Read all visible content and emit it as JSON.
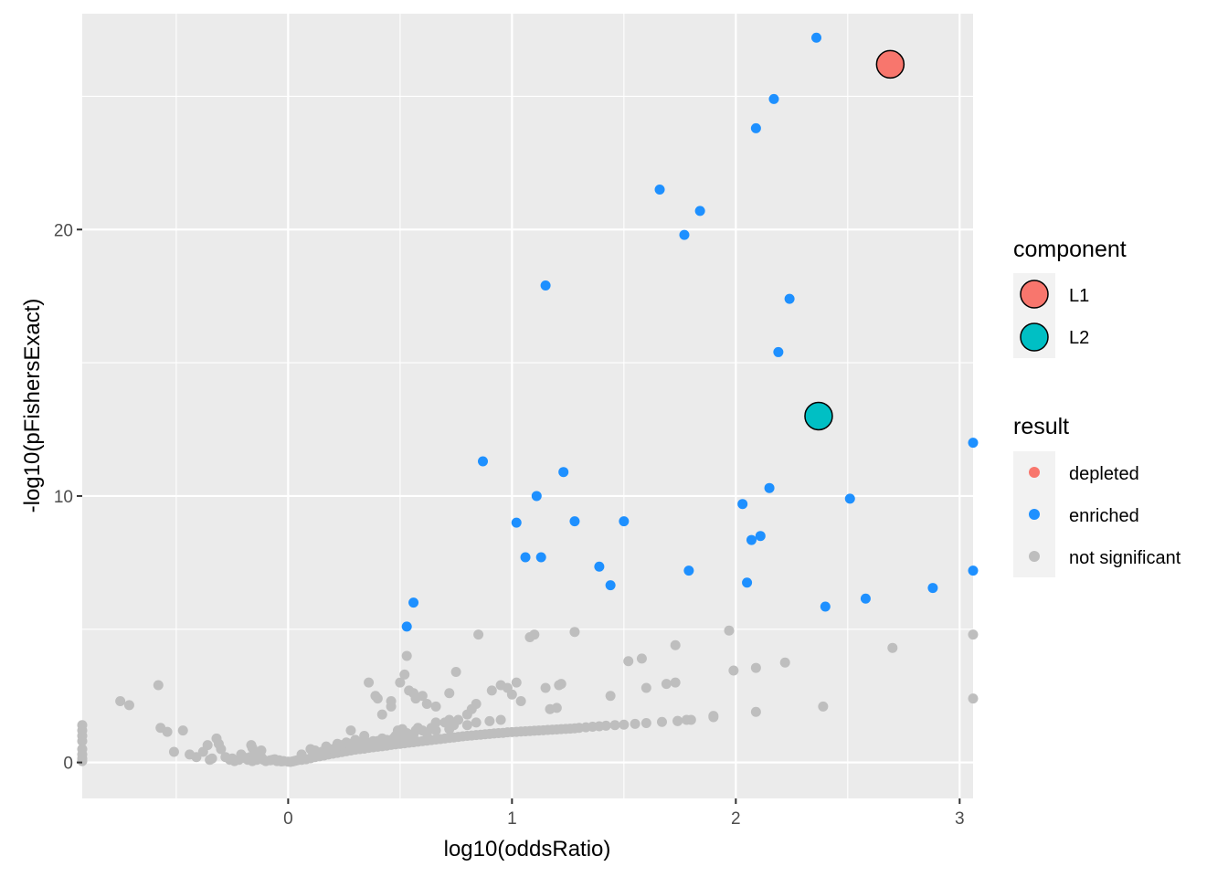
{
  "chart_data": {
    "type": "scatter",
    "xlabel": "log10(oddsRatio)",
    "ylabel": "-log10(pFishersExact)",
    "xlim": [
      -0.92,
      3.06
    ],
    "ylim": [
      -1.35,
      28.1
    ],
    "x_ticks": [
      0,
      1,
      2,
      3
    ],
    "y_ticks": [
      0,
      10,
      20
    ],
    "x_tick_labels": [
      "0",
      "1",
      "2",
      "3"
    ],
    "y_tick_labels": [
      "0",
      "10",
      "20"
    ],
    "grid": true,
    "colors": {
      "panel": "#ebebeb",
      "grid": "#ffffff",
      "depleted": "#f8766d",
      "enriched": "#1e90ff",
      "not_significant": "#bebebe",
      "L1": "#f8766d",
      "L2": "#00bfc4"
    },
    "legends": [
      {
        "title": "component",
        "placement": "right",
        "entries": [
          {
            "label": "L1",
            "color": "#f8766d",
            "style": "large-outlined"
          },
          {
            "label": "L2",
            "color": "#00bfc4",
            "style": "large-outlined"
          }
        ]
      },
      {
        "title": "result",
        "placement": "right",
        "entries": [
          {
            "label": "depleted",
            "color": "#f8766d",
            "style": "small"
          },
          {
            "label": "enriched",
            "color": "#1e90ff",
            "style": "small"
          },
          {
            "label": "not significant",
            "color": "#bebebe",
            "style": "small"
          }
        ]
      }
    ],
    "series": [
      {
        "name": "not significant",
        "color": "#bebebe",
        "points": [
          [
            -0.92,
            1.4
          ],
          [
            -0.92,
            1.2
          ],
          [
            -0.92,
            1.0
          ],
          [
            -0.92,
            0.8
          ],
          [
            -0.92,
            0.5
          ],
          [
            -0.92,
            0.3
          ],
          [
            -0.92,
            0.15
          ],
          [
            -0.92,
            0.05
          ],
          [
            -0.75,
            2.3
          ],
          [
            -0.71,
            2.15
          ],
          [
            -0.58,
            2.9
          ],
          [
            -0.57,
            1.3
          ],
          [
            -0.54,
            1.15
          ],
          [
            -0.51,
            0.4
          ],
          [
            -0.47,
            1.2
          ],
          [
            -0.44,
            0.3
          ],
          [
            -0.41,
            0.2
          ],
          [
            -0.38,
            0.4
          ],
          [
            -0.36,
            0.65
          ],
          [
            -0.34,
            0.15
          ],
          [
            -0.32,
            0.9
          ],
          [
            -0.31,
            0.7
          ],
          [
            -0.3,
            0.5
          ],
          [
            -0.28,
            0.2
          ],
          [
            -0.26,
            0.1
          ],
          [
            -0.24,
            0.05
          ],
          [
            -0.22,
            0.1
          ],
          [
            -0.21,
            0.3
          ],
          [
            -0.19,
            0.15
          ],
          [
            -0.18,
            0.1
          ],
          [
            -0.17,
            0.2
          ],
          [
            -0.16,
            0.05
          ],
          [
            -0.15,
            0.3
          ],
          [
            -0.14,
            0.1
          ],
          [
            -0.12,
            0.45
          ],
          [
            -0.11,
            0.1
          ],
          [
            -0.1,
            0.05
          ],
          [
            -0.08,
            0.08
          ],
          [
            -0.07,
            0.1
          ],
          [
            -0.05,
            0.05
          ],
          [
            -0.03,
            0.04
          ],
          [
            -0.12,
            0.2
          ],
          [
            -0.16,
            0.55
          ],
          [
            -0.165,
            0.65
          ],
          [
            -0.2,
            0.2
          ],
          [
            -0.25,
            0.15
          ],
          [
            -0.35,
            0.1
          ],
          [
            -0.06,
            0.12
          ],
          [
            -0.04,
            0.08
          ],
          [
            -0.02,
            0.05
          ],
          [
            0.0,
            0.03
          ],
          [
            0.01,
            0.02
          ],
          [
            0.02,
            0.04
          ],
          [
            0.03,
            0.06
          ],
          [
            0.04,
            0.08
          ],
          [
            0.06,
            0.1
          ],
          [
            0.08,
            0.12
          ],
          [
            0.1,
            0.16
          ],
          [
            0.12,
            0.2
          ],
          [
            0.14,
            0.23
          ],
          [
            0.16,
            0.26
          ],
          [
            0.18,
            0.3
          ],
          [
            0.2,
            0.33
          ],
          [
            0.22,
            0.36
          ],
          [
            0.24,
            0.39
          ],
          [
            0.26,
            0.42
          ],
          [
            0.28,
            0.45
          ],
          [
            0.3,
            0.48
          ],
          [
            0.32,
            0.5
          ],
          [
            0.34,
            0.52
          ],
          [
            0.36,
            0.55
          ],
          [
            0.38,
            0.57
          ],
          [
            0.4,
            0.59
          ],
          [
            0.42,
            0.61
          ],
          [
            0.44,
            0.63
          ],
          [
            0.46,
            0.66
          ],
          [
            0.48,
            0.68
          ],
          [
            0.5,
            0.7
          ],
          [
            0.52,
            0.72
          ],
          [
            0.54,
            0.74
          ],
          [
            0.56,
            0.76
          ],
          [
            0.58,
            0.78
          ],
          [
            0.6,
            0.8
          ],
          [
            0.62,
            0.82
          ],
          [
            0.64,
            0.84
          ],
          [
            0.66,
            0.86
          ],
          [
            0.68,
            0.88
          ],
          [
            0.7,
            0.9
          ],
          [
            0.72,
            0.92
          ],
          [
            0.74,
            0.94
          ],
          [
            0.76,
            0.96
          ],
          [
            0.78,
            0.98
          ],
          [
            0.8,
            1.0
          ],
          [
            0.82,
            1.01
          ],
          [
            0.84,
            1.03
          ],
          [
            0.86,
            1.04
          ],
          [
            0.88,
            1.06
          ],
          [
            0.9,
            1.07
          ],
          [
            0.92,
            1.09
          ],
          [
            0.94,
            1.1
          ],
          [
            0.96,
            1.11
          ],
          [
            0.98,
            1.13
          ],
          [
            1.0,
            1.14
          ],
          [
            1.02,
            1.15
          ],
          [
            1.04,
            1.16
          ],
          [
            1.06,
            1.17
          ],
          [
            1.08,
            1.18
          ],
          [
            1.1,
            1.19
          ],
          [
            1.12,
            1.2
          ],
          [
            1.14,
            1.21
          ],
          [
            1.16,
            1.22
          ],
          [
            1.18,
            1.23
          ],
          [
            1.2,
            1.24
          ],
          [
            1.22,
            1.25
          ],
          [
            1.24,
            1.26
          ],
          [
            1.26,
            1.27
          ],
          [
            1.28,
            1.28
          ],
          [
            1.3,
            1.3
          ],
          [
            1.33,
            1.32
          ],
          [
            1.36,
            1.34
          ],
          [
            1.39,
            1.36
          ],
          [
            1.42,
            1.38
          ],
          [
            1.46,
            1.4
          ],
          [
            1.5,
            1.42
          ],
          [
            1.55,
            1.45
          ],
          [
            1.6,
            1.48
          ],
          [
            1.67,
            1.52
          ],
          [
            1.74,
            1.56
          ],
          [
            1.8,
            1.6
          ],
          [
            1.9,
            1.7
          ],
          [
            0.06,
            0.3
          ],
          [
            0.1,
            0.5
          ],
          [
            0.12,
            0.45
          ],
          [
            0.15,
            0.4
          ],
          [
            0.17,
            0.6
          ],
          [
            0.18,
            0.45
          ],
          [
            0.2,
            0.5
          ],
          [
            0.22,
            0.6
          ],
          [
            0.24,
            0.65
          ],
          [
            0.26,
            0.75
          ],
          [
            0.28,
            0.7
          ],
          [
            0.29,
            0.6
          ],
          [
            0.3,
            0.85
          ],
          [
            0.31,
            0.7
          ],
          [
            0.32,
            0.55
          ],
          [
            0.33,
            0.75
          ],
          [
            0.34,
            0.65
          ],
          [
            0.35,
            0.7
          ],
          [
            0.36,
            0.65
          ],
          [
            0.37,
            0.75
          ],
          [
            0.38,
            0.8
          ],
          [
            0.39,
            0.7
          ],
          [
            0.4,
            0.8
          ],
          [
            0.41,
            0.65
          ],
          [
            0.42,
            0.9
          ],
          [
            0.43,
            0.75
          ],
          [
            0.44,
            0.85
          ],
          [
            0.45,
            0.8
          ],
          [
            0.46,
            0.8
          ],
          [
            0.47,
            0.9
          ],
          [
            0.48,
            1.0
          ],
          [
            0.49,
            1.2
          ],
          [
            0.5,
            1.0
          ],
          [
            0.51,
            1.25
          ],
          [
            0.52,
            0.9
          ],
          [
            0.53,
            1.1
          ],
          [
            0.54,
            1.0
          ],
          [
            0.55,
            0.9
          ],
          [
            0.56,
            1.05
          ],
          [
            0.57,
            1.2
          ],
          [
            0.58,
            1.3
          ],
          [
            0.6,
            1.2
          ],
          [
            0.62,
            1.1
          ],
          [
            0.64,
            1.3
          ],
          [
            0.66,
            1.2
          ],
          [
            0.7,
            1.5
          ],
          [
            0.72,
            1.25
          ],
          [
            0.74,
            1.4
          ],
          [
            0.76,
            1.6
          ],
          [
            0.8,
            1.4
          ],
          [
            0.84,
            1.5
          ],
          [
            0.9,
            1.55
          ],
          [
            0.95,
            1.6
          ],
          [
            0.22,
            0.7
          ],
          [
            0.28,
            1.2
          ],
          [
            0.34,
            1.0
          ],
          [
            0.36,
            3.0
          ],
          [
            0.39,
            2.5
          ],
          [
            0.4,
            2.4
          ],
          [
            0.42,
            1.8
          ],
          [
            0.46,
            2.3
          ],
          [
            0.46,
            2.1
          ],
          [
            0.5,
            3.0
          ],
          [
            0.52,
            3.3
          ],
          [
            0.53,
            4.0
          ],
          [
            0.54,
            2.7
          ],
          [
            0.56,
            2.6
          ],
          [
            0.57,
            2.4
          ],
          [
            0.6,
            2.5
          ],
          [
            0.62,
            2.2
          ],
          [
            0.66,
            2.1
          ],
          [
            0.66,
            1.5
          ],
          [
            0.72,
            1.6
          ],
          [
            0.8,
            1.8
          ],
          [
            0.82,
            2.0
          ],
          [
            0.84,
            2.2
          ],
          [
            0.72,
            2.6
          ],
          [
            0.75,
            3.4
          ],
          [
            0.85,
            4.8
          ],
          [
            0.91,
            2.7
          ],
          [
            0.95,
            2.9
          ],
          [
            0.98,
            2.8
          ],
          [
            1.02,
            3.0
          ],
          [
            1.0,
            2.55
          ],
          [
            1.04,
            2.3
          ],
          [
            1.08,
            4.7
          ],
          [
            1.1,
            4.8
          ],
          [
            1.15,
            2.8
          ],
          [
            1.17,
            2.0
          ],
          [
            1.2,
            2.05
          ],
          [
            1.21,
            2.9
          ],
          [
            1.22,
            2.95
          ],
          [
            1.28,
            4.9
          ],
          [
            1.44,
            2.5
          ],
          [
            1.52,
            3.8
          ],
          [
            1.58,
            3.9
          ],
          [
            1.6,
            2.8
          ],
          [
            1.69,
            2.95
          ],
          [
            1.73,
            3.0
          ],
          [
            1.73,
            4.4
          ],
          [
            1.74,
            1.55
          ],
          [
            1.97,
            4.95
          ],
          [
            1.99,
            3.45
          ],
          [
            2.09,
            3.55
          ],
          [
            2.09,
            1.9
          ],
          [
            2.22,
            3.75
          ],
          [
            2.39,
            2.1
          ],
          [
            2.7,
            4.3
          ],
          [
            3.06,
            4.8
          ],
          [
            3.06,
            2.4
          ],
          [
            1.9,
            1.75
          ],
          [
            1.78,
            1.6
          ]
        ]
      },
      {
        "name": "enriched",
        "color": "#1e90ff",
        "points": [
          [
            2.36,
            27.2
          ],
          [
            2.17,
            24.9
          ],
          [
            2.09,
            23.8
          ],
          [
            1.66,
            21.5
          ],
          [
            1.84,
            20.7
          ],
          [
            1.77,
            19.8
          ],
          [
            1.15,
            17.9
          ],
          [
            2.24,
            17.4
          ],
          [
            2.19,
            15.4
          ],
          [
            0.87,
            11.3
          ],
          [
            3.06,
            12.0
          ],
          [
            1.23,
            10.9
          ],
          [
            2.15,
            10.3
          ],
          [
            1.11,
            10.0
          ],
          [
            2.51,
            9.9
          ],
          [
            2.03,
            9.7
          ],
          [
            1.02,
            9.0
          ],
          [
            1.28,
            9.05
          ],
          [
            1.5,
            9.05
          ],
          [
            2.11,
            8.5
          ],
          [
            2.07,
            8.35
          ],
          [
            1.06,
            7.7
          ],
          [
            1.13,
            7.7
          ],
          [
            1.39,
            7.35
          ],
          [
            1.79,
            7.2
          ],
          [
            3.06,
            7.2
          ],
          [
            2.05,
            6.75
          ],
          [
            1.44,
            6.65
          ],
          [
            2.88,
            6.55
          ],
          [
            0.56,
            6.0
          ],
          [
            2.58,
            6.15
          ],
          [
            2.4,
            5.85
          ],
          [
            0.53,
            5.1
          ]
        ]
      }
    ],
    "components": [
      {
        "name": "L1",
        "x": 2.69,
        "y": 26.2,
        "color": "#f8766d"
      },
      {
        "name": "L2",
        "x": 2.37,
        "y": 13.0,
        "color": "#00bfc4"
      }
    ]
  }
}
